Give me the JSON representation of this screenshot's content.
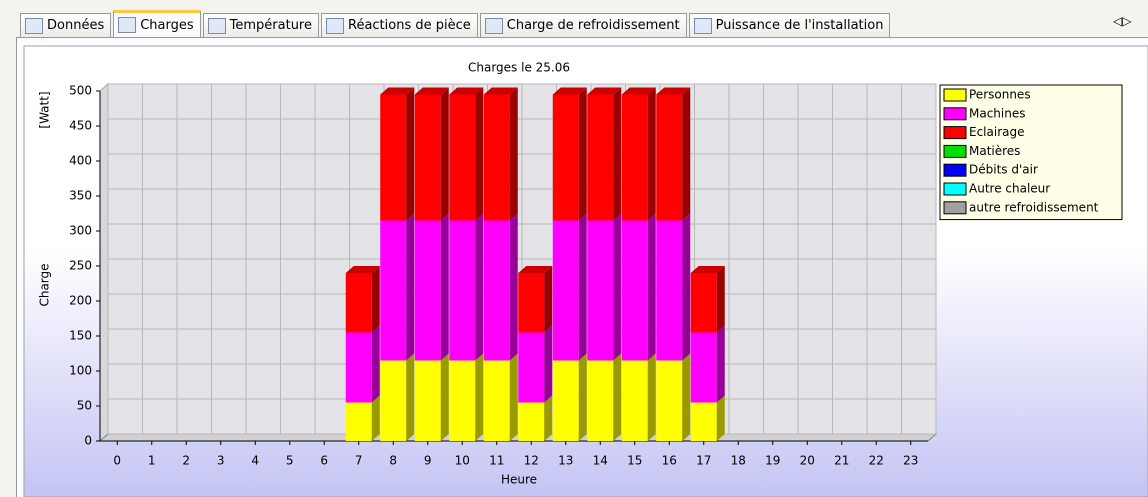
{
  "tabs": [
    "Données",
    "Charges",
    "Température",
    "Réactions de pièce",
    "Charge de refroidissement",
    "Puissance de l'installation"
  ],
  "chart_data": {
    "type": "bar3d",
    "stacked": true,
    "title": "Charges le 25.06",
    "y_label": "Charge",
    "y_unit": "[Watt]",
    "x_label": "Heure",
    "categories": [
      "0",
      "1",
      "2",
      "3",
      "4",
      "5",
      "6",
      "7",
      "8",
      "9",
      "10",
      "11",
      "12",
      "13",
      "14",
      "15",
      "16",
      "17",
      "18",
      "19",
      "20",
      "21",
      "22",
      "23"
    ],
    "series": [
      {
        "name": "Personnes",
        "color": "#ffff00",
        "values": [
          0,
          0,
          0,
          0,
          0,
          0,
          0,
          55,
          115,
          115,
          115,
          115,
          55,
          115,
          115,
          115,
          115,
          55,
          0,
          0,
          0,
          0,
          0,
          0
        ]
      },
      {
        "name": "Machines",
        "color": "#ff00ff",
        "values": [
          0,
          0,
          0,
          0,
          0,
          0,
          0,
          100,
          200,
          200,
          200,
          200,
          100,
          200,
          200,
          200,
          200,
          100,
          0,
          0,
          0,
          0,
          0,
          0
        ]
      },
      {
        "name": "Eclairage",
        "color": "#ff0000",
        "values": [
          0,
          0,
          0,
          0,
          0,
          0,
          0,
          85,
          180,
          180,
          180,
          180,
          85,
          180,
          180,
          180,
          180,
          85,
          0,
          0,
          0,
          0,
          0,
          0
        ]
      },
      {
        "name": "Matières",
        "color": "#00e000",
        "values": [
          0,
          0,
          0,
          0,
          0,
          0,
          0,
          0,
          0,
          0,
          0,
          0,
          0,
          0,
          0,
          0,
          0,
          0,
          0,
          0,
          0,
          0,
          0,
          0
        ]
      },
      {
        "name": "Débits d'air",
        "color": "#0000ff",
        "values": [
          0,
          0,
          0,
          0,
          0,
          0,
          0,
          0,
          0,
          0,
          0,
          0,
          0,
          0,
          0,
          0,
          0,
          0,
          0,
          0,
          0,
          0,
          0,
          0
        ]
      },
      {
        "name": "Autre chaleur",
        "color": "#00ffff",
        "values": [
          0,
          0,
          0,
          0,
          0,
          0,
          0,
          0,
          0,
          0,
          0,
          0,
          0,
          0,
          0,
          0,
          0,
          0,
          0,
          0,
          0,
          0,
          0,
          0
        ]
      },
      {
        "name": "autre refroidissement",
        "color": "#a0a0a0",
        "values": [
          0,
          0,
          0,
          0,
          0,
          0,
          0,
          0,
          0,
          0,
          0,
          0,
          0,
          0,
          0,
          0,
          0,
          0,
          0,
          0,
          0,
          0,
          0,
          0
        ]
      }
    ],
    "ylim": [
      0,
      500
    ],
    "yticks": [
      0,
      50,
      100,
      150,
      200,
      250,
      300,
      350,
      400,
      450,
      500
    ],
    "grid": true,
    "legend": "right"
  }
}
